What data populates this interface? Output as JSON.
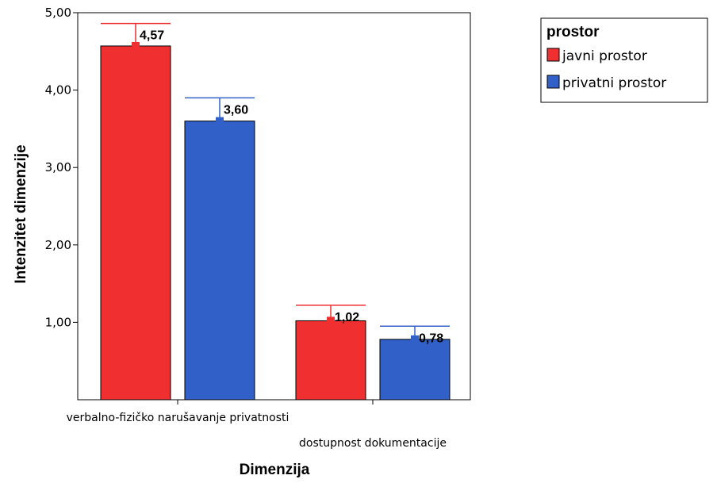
{
  "chart_data": {
    "type": "bar",
    "xlabel": "Dimenzija",
    "ylabel": "Intenzitet dimenzije",
    "ylim": [
      0,
      5
    ],
    "yticks": [
      "1,00",
      "2,00",
      "3,00",
      "4,00",
      "5,00"
    ],
    "ytick_values": [
      1,
      2,
      3,
      4,
      5
    ],
    "grid": false,
    "categories": [
      "verbalno-fizičko narušavanje privatnosti",
      "dostupnost dokumentacije"
    ],
    "series": [
      {
        "name": "javni prostor",
        "color": "#f03030",
        "values": [
          4.57,
          1.02
        ],
        "labels": [
          "4,57",
          "1,02"
        ],
        "error_upper": [
          4.86,
          1.22
        ]
      },
      {
        "name": "privatni prostor",
        "color": "#3060c8",
        "values": [
          3.6,
          0.78
        ],
        "labels": [
          "3,60",
          "0,78"
        ],
        "error_upper": [
          3.9,
          0.95
        ]
      }
    ],
    "legend": {
      "title": "prostor",
      "placement": "top-right"
    }
  }
}
